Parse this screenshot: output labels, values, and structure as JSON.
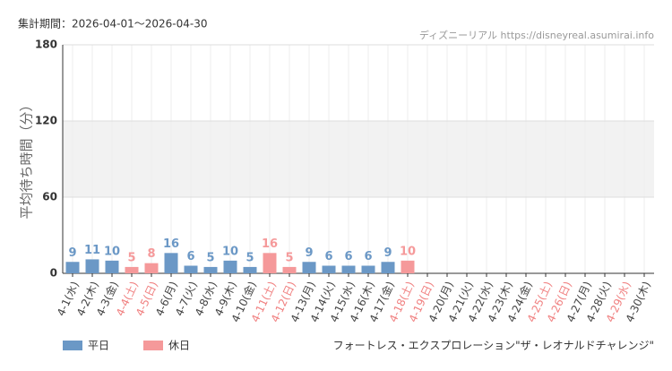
{
  "header": {
    "period": "集計期間：2026-04-01～2026-04-30",
    "site": "ディズニーリアル https://disneyreal.asumirai.info"
  },
  "chart_data": {
    "type": "bar",
    "ylabel": "平均待ち時間（分）",
    "subtitle": "フォートレス・エクスプロレーション\"ザ・レオナルドチャレンジ\"",
    "categories": [
      "4-1(水)",
      "4-2(木)",
      "4-3(金)",
      "4-4(土)",
      "4-5(日)",
      "4-6(月)",
      "4-7(火)",
      "4-8(水)",
      "4-9(木)",
      "4-10(金)",
      "4-11(土)",
      "4-12(日)",
      "4-13(月)",
      "4-14(火)",
      "4-15(水)",
      "4-16(木)",
      "4-17(金)",
      "4-18(土)",
      "4-19(日)",
      "4-20(月)",
      "4-21(火)",
      "4-22(水)",
      "4-23(木)",
      "4-24(金)",
      "4-25(土)",
      "4-26(日)",
      "4-27(月)",
      "4-28(火)",
      "4-29(水)",
      "4-30(木)"
    ],
    "label_colors": [
      "#444",
      "#444",
      "#444",
      "#f08080",
      "#f08080",
      "#444",
      "#444",
      "#444",
      "#444",
      "#444",
      "#f08080",
      "#f08080",
      "#444",
      "#444",
      "#444",
      "#444",
      "#444",
      "#f08080",
      "#f08080",
      "#444",
      "#444",
      "#444",
      "#444",
      "#444",
      "#f08080",
      "#f08080",
      "#444",
      "#444",
      "#f08080",
      "#444"
    ],
    "series": [
      {
        "name": "平日",
        "color": "#6b98c6",
        "values": [
          9,
          11,
          10,
          null,
          null,
          16,
          6,
          5,
          10,
          5,
          null,
          null,
          9,
          6,
          6,
          6,
          9,
          null,
          null,
          null,
          null,
          null,
          null,
          null,
          null,
          null,
          null,
          null,
          null,
          null
        ]
      },
      {
        "name": "休日",
        "color": "#f5999a",
        "values": [
          null,
          null,
          null,
          5,
          8,
          null,
          null,
          null,
          null,
          null,
          16,
          5,
          null,
          null,
          null,
          null,
          null,
          10,
          null,
          null,
          null,
          null,
          null,
          null,
          null,
          null,
          null,
          null,
          null,
          null
        ]
      }
    ],
    "ylim": [
      0,
      180
    ],
    "yticks": [
      0,
      60,
      120,
      180
    ],
    "band": [
      60,
      120
    ],
    "grid": true
  }
}
